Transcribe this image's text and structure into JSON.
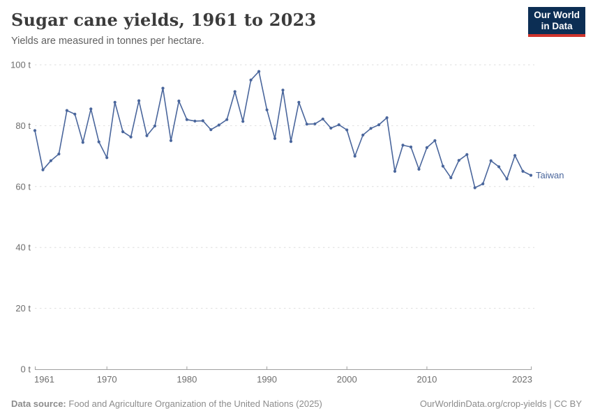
{
  "header": {
    "title": "Sugar cane yields, 1961 to 2023",
    "subtitle": "Yields are measured in tonnes per hectare."
  },
  "logo": {
    "line1": "Our World",
    "line2": "in Data"
  },
  "chart_data": {
    "type": "line",
    "title": "Sugar cane yields, 1961 to 2023",
    "ylabel": "tonnes per hectare",
    "unit": "t",
    "ylim": [
      0,
      100
    ],
    "xlim": [
      1961,
      2023
    ],
    "grid": "horizontal-dashed",
    "legend_position": "end-of-line",
    "yticks": [
      {
        "value": 0,
        "label": "0 t"
      },
      {
        "value": 20,
        "label": "20 t"
      },
      {
        "value": 40,
        "label": "40 t"
      },
      {
        "value": 60,
        "label": "60 t"
      },
      {
        "value": 80,
        "label": "80 t"
      },
      {
        "value": 100,
        "label": "100 t"
      }
    ],
    "xticks": [
      {
        "year": 1961,
        "label": "1961"
      },
      {
        "year": 1970,
        "label": "1970"
      },
      {
        "year": 1980,
        "label": "1980"
      },
      {
        "year": 1990,
        "label": "1990"
      },
      {
        "year": 2000,
        "label": "2000"
      },
      {
        "year": 2010,
        "label": "2010"
      },
      {
        "year": 2023,
        "label": "2023"
      }
    ],
    "x": [
      1961,
      1962,
      1963,
      1964,
      1965,
      1966,
      1967,
      1968,
      1969,
      1970,
      1971,
      1972,
      1973,
      1974,
      1975,
      1976,
      1977,
      1978,
      1979,
      1980,
      1981,
      1982,
      1983,
      1984,
      1985,
      1986,
      1987,
      1988,
      1989,
      1990,
      1991,
      1992,
      1993,
      1994,
      1995,
      1996,
      1997,
      1998,
      1999,
      2000,
      2001,
      2002,
      2003,
      2004,
      2005,
      2006,
      2007,
      2008,
      2009,
      2010,
      2011,
      2012,
      2013,
      2014,
      2015,
      2016,
      2017,
      2018,
      2019,
      2020,
      2021,
      2022,
      2023
    ],
    "series": [
      {
        "name": "Taiwan",
        "color": "#4A669C",
        "values": [
          78.4,
          65.5,
          68.5,
          70.7,
          85.0,
          83.8,
          74.5,
          85.5,
          74.7,
          69.5,
          87.7,
          78.0,
          76.3,
          88.2,
          76.7,
          79.9,
          92.3,
          75.1,
          88.1,
          82.0,
          81.5,
          81.6,
          78.7,
          80.2,
          82.0,
          91.2,
          81.4,
          95.0,
          97.8,
          85.2,
          75.8,
          91.7,
          74.8,
          87.7,
          80.5,
          80.6,
          82.2,
          79.2,
          80.3,
          78.6,
          70.0,
          76.9,
          79.1,
          80.3,
          82.6,
          65.0,
          73.6,
          73.0,
          65.7,
          72.8,
          75.1,
          66.7,
          62.9,
          68.6,
          70.5,
          59.6,
          60.9,
          68.5,
          66.5,
          62.5,
          70.2,
          65.0,
          63.7
        ]
      }
    ]
  },
  "footer": {
    "source_bold": "Data source:",
    "source_text": "Food and Agriculture Organization of the United Nations (2025)",
    "credit": "OurWorldinData.org/crop-yields | CC BY"
  },
  "colors": {
    "line": "#4A669C",
    "grid": "#dedede",
    "axis": "#a0a0a0",
    "tick_text": "#6e6e6e",
    "title_text": "#3b3b3b",
    "subtitle_text": "#616161",
    "footer_text": "#8c8c8c",
    "logo_bg": "#0c2e54",
    "logo_accent": "#d0342c"
  }
}
